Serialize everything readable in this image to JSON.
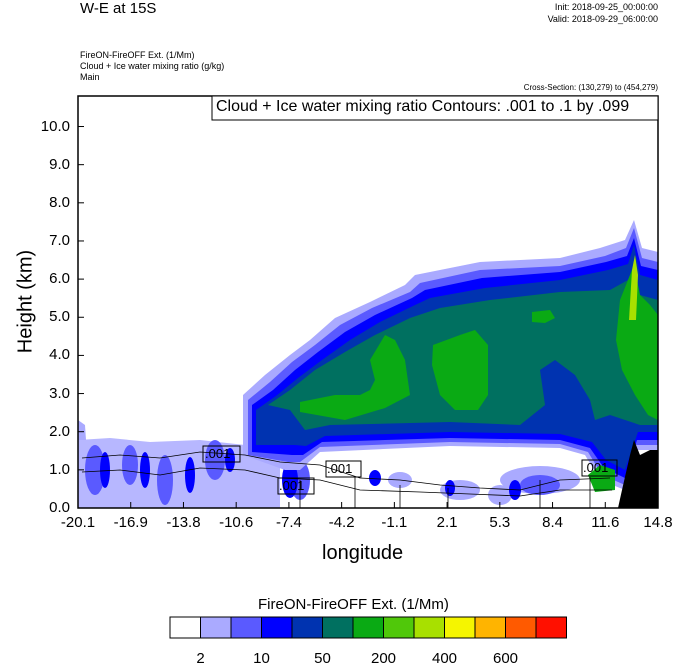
{
  "header": {
    "title": "W-E at 15S",
    "init": "Init: 2018-09-25_00:00:00",
    "valid": "Valid: 2018-09-29_06:00:00",
    "field1": "FireON-FireOFF Ext.   (1/Mm)",
    "field2": "Cloud + Ice water mixing ratio   (g/kg)",
    "field3": "Main",
    "cross_section": "Cross-Section: (130,279) to (454,279)",
    "contour_info": "Cloud + Ice water mixing ratio Contours: .001 to .1 by .099"
  },
  "chart_data": {
    "type": "heatmap",
    "title": "W-E at 15S",
    "xlabel": "longitude",
    "ylabel": "Height (km)",
    "xlim": [
      -20.1,
      14.8
    ],
    "ylim": [
      0.0,
      10.8
    ],
    "xticks": [
      "-20.1",
      "-16.9",
      "-13.8",
      "-10.6",
      "-7.4",
      "-4.2",
      "-1.1",
      "2.1",
      "5.3",
      "8.4",
      "11.6",
      "14.8"
    ],
    "yticks": [
      "0.0",
      "1.0",
      "2.0",
      "3.0",
      "4.0",
      "5.0",
      "6.0",
      "7.0",
      "8.0",
      "9.0",
      "10.0"
    ],
    "contour_labels": [
      ".001",
      ".001",
      ".001",
      ".001"
    ],
    "colorbar": {
      "title": "FireON-FireOFF Ext.  (1/Mm)",
      "colors": [
        "#ffffff",
        "#aaaaff",
        "#5a5aff",
        "#0000ff",
        "#0033b0",
        "#007060",
        "#0aaa14",
        "#50c80a",
        "#a8e000",
        "#f5f500",
        "#ffb400",
        "#ff5a00",
        "#ff1000"
      ],
      "labels": [
        "2",
        "10",
        "50",
        "200",
        "400",
        "600"
      ]
    }
  }
}
